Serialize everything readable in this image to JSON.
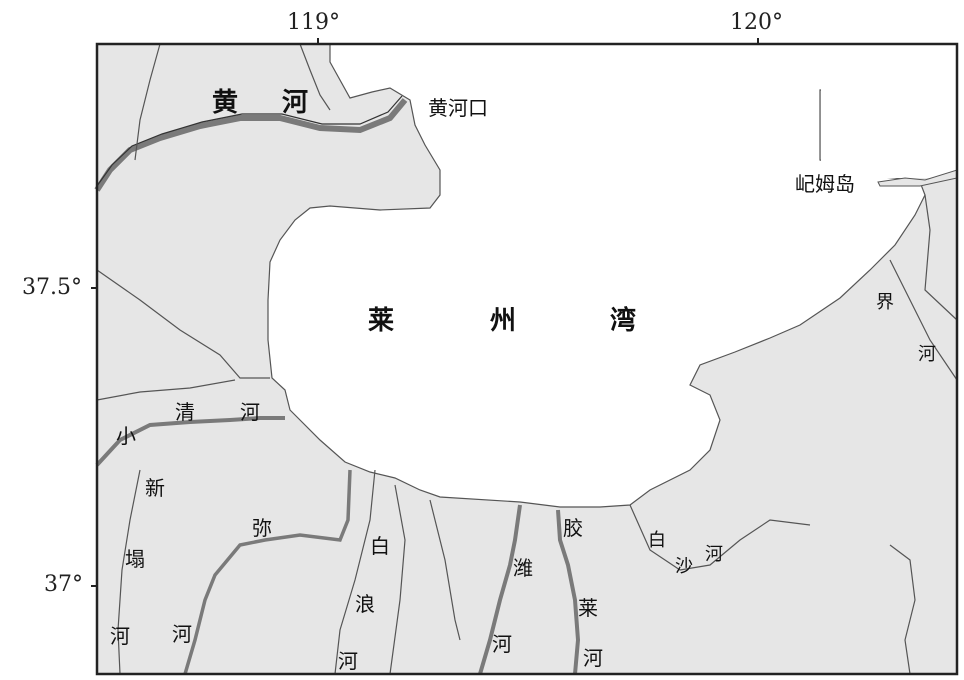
{
  "axes": {
    "top": [
      "119°",
      "120°"
    ],
    "left": [
      "37.5°",
      "37°"
    ]
  },
  "labels": {
    "huanghe_1": "黄",
    "huanghe_2": "河",
    "huanghekou": "黄河口",
    "jimudao": "屺姆岛",
    "laizhouwan_1": "莱",
    "laizhouwan_2": "州",
    "laizhouwan_3": "湾",
    "xiaoqinghe_1": "小",
    "xiaoqinghe_2": "清",
    "xiaoqinghe_3": "河",
    "jiehe_1": "界",
    "jiehe_2": "河",
    "xintahe_1": "新",
    "xintahe_2": "塌",
    "xintahe_3": "河",
    "mihe_1": "弥",
    "mihe_2": "河",
    "bailanghe_1": "白",
    "bailanghe_2": "浪",
    "bailanghe_3": "河",
    "weihe_1": "潍",
    "weihe_2": "河",
    "jiaolaihe_1": "胶",
    "jiaolaihe_2": "莱",
    "jiaolaihe_3": "河",
    "baishahe_1": "白",
    "baishahe_2": "沙",
    "baishahe_3": "河"
  },
  "colors": {
    "land": "#e6e6e6",
    "sea": "#ffffff",
    "border": "#222222",
    "river_major": "#7a7a7a",
    "river_minor": "#555555"
  }
}
